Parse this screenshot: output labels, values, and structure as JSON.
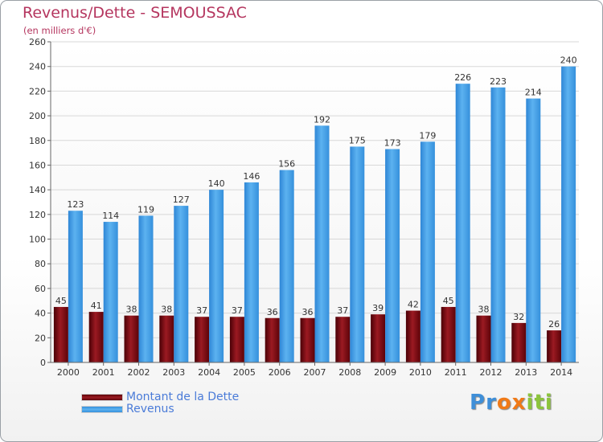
{
  "chart_data": {
    "type": "bar",
    "title": "Revenus/Dette - SEMOUSSAC",
    "subtitle": "(en milliers d'€)",
    "categories": [
      "2000",
      "2001",
      "2002",
      "2003",
      "2004",
      "2005",
      "2006",
      "2007",
      "2008",
      "2009",
      "2010",
      "2011",
      "2012",
      "2013",
      "2014"
    ],
    "series": [
      {
        "name": "Montant de la Dette",
        "values": [
          45,
          41,
          38,
          38,
          37,
          37,
          36,
          36,
          37,
          39,
          42,
          45,
          38,
          32,
          26
        ]
      },
      {
        "name": "Revenus",
        "values": [
          123,
          114,
          119,
          127,
          140,
          146,
          156,
          192,
          175,
          173,
          179,
          226,
          223,
          214,
          240
        ]
      }
    ],
    "ylim": [
      0,
      260
    ],
    "yticks": [
      0,
      20,
      40,
      60,
      80,
      100,
      120,
      140,
      160,
      180,
      200,
      220,
      240,
      260
    ],
    "xlabel": "",
    "ylabel": "",
    "grid": true,
    "legend": "bottom-left",
    "colors": {
      "Montant de la Dette": "#7a0c14",
      "Revenus": "#3d98e0"
    }
  },
  "brand": {
    "letters": [
      "P",
      "r",
      "o",
      "x",
      "i",
      "t",
      "i"
    ],
    "colors": [
      "#3f8fd8",
      "#3f8fd8",
      "#f07a18",
      "#f07a18",
      "#8cc43c",
      "#8cc43c",
      "#8cc43c"
    ]
  }
}
